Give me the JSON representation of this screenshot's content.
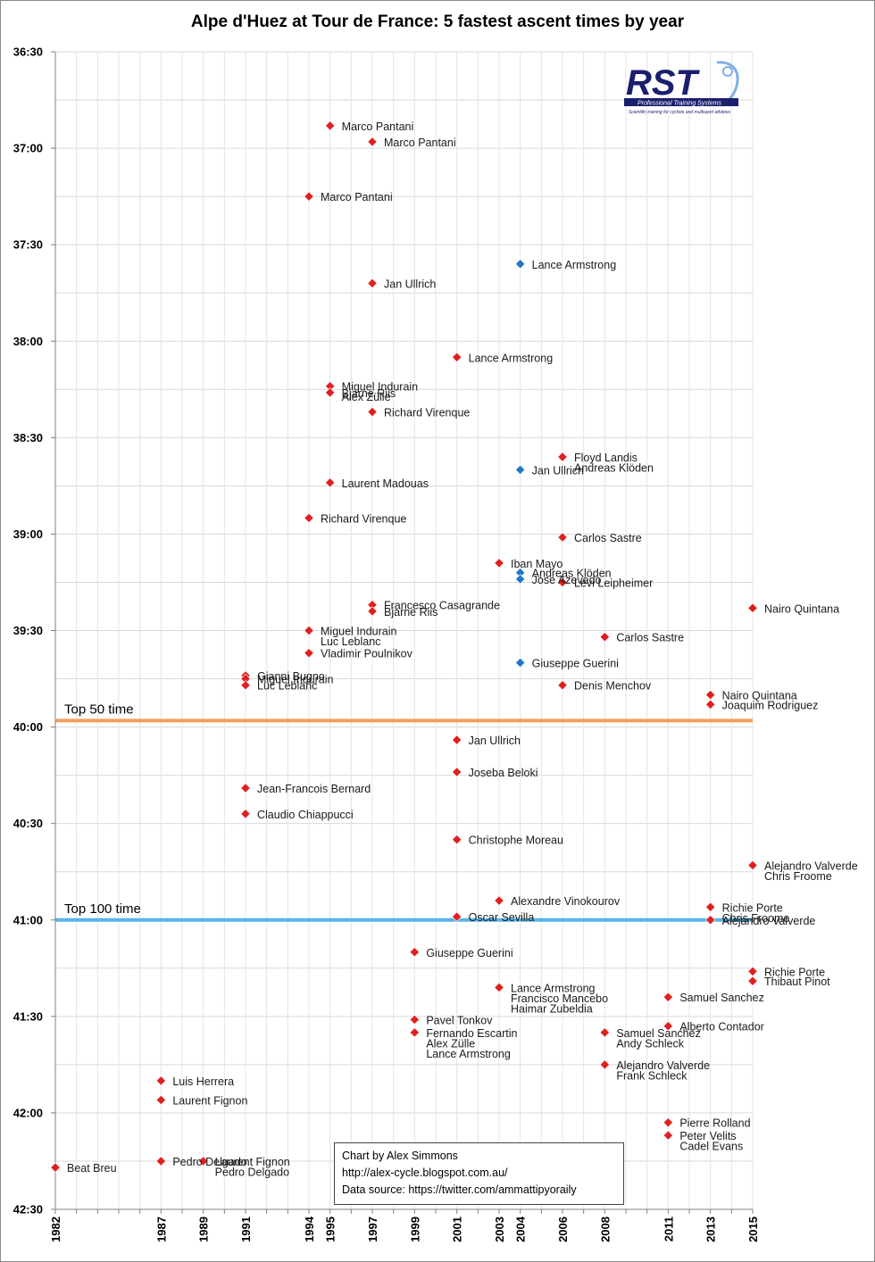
{
  "chart_data": {
    "type": "scatter",
    "title": "Alpe d'Huez at Tour de France: 5 fastest ascent times by year",
    "xlabel": "",
    "ylabel": "",
    "y_axis_inverted": true,
    "ylim_seconds": [
      2190,
      2550
    ],
    "y_ticks": [
      "36:30",
      "37:00",
      "37:30",
      "38:00",
      "38:30",
      "39:00",
      "39:30",
      "40:00",
      "40:30",
      "41:00",
      "41:30",
      "42:00",
      "42:30"
    ],
    "x_ticks": [
      "1982",
      "1987",
      "1989",
      "1991",
      "1994",
      "1995",
      "1997",
      "1999",
      "2001",
      "2003",
      "2004",
      "2006",
      "2008",
      "2011",
      "2013",
      "2015"
    ],
    "xlim": [
      1982,
      2015
    ],
    "series": [
      {
        "name": "Standard",
        "color": "#e02020"
      },
      {
        "name": "Highlighted",
        "color": "#1e78c8"
      }
    ],
    "reference_lines": [
      {
        "label": "Top 50 time",
        "value": "39:58",
        "color": "#f0a060"
      },
      {
        "label": "Top 100 time",
        "value": "41:00",
        "color": "#5ab4e6"
      }
    ],
    "points": [
      {
        "x": 1995,
        "y": "36:53",
        "series": 0,
        "labels": [
          "Marco Pantani"
        ]
      },
      {
        "x": 1997,
        "y": "36:58",
        "series": 0,
        "labels": [
          "Marco Pantani"
        ]
      },
      {
        "x": 1994,
        "y": "37:15",
        "series": 0,
        "labels": [
          "Marco Pantani"
        ]
      },
      {
        "x": 2004,
        "y": "37:36",
        "series": 1,
        "labels": [
          "Lance Armstrong"
        ]
      },
      {
        "x": 1997,
        "y": "37:42",
        "series": 0,
        "labels": [
          "Jan Ullrich"
        ]
      },
      {
        "x": 2001,
        "y": "38:05",
        "series": 0,
        "labels": [
          "Lance Armstrong"
        ]
      },
      {
        "x": 1995,
        "y": "38:14",
        "series": 0,
        "labels": [
          "Miguel Indurain",
          "Alex Zülle"
        ]
      },
      {
        "x": 1995,
        "y": "38:16",
        "series": 0,
        "labels": [
          "Bjarne Riis"
        ]
      },
      {
        "x": 1997,
        "y": "38:22",
        "series": 0,
        "labels": [
          "Richard Virenque"
        ]
      },
      {
        "x": 2006,
        "y": "38:36",
        "series": 0,
        "labels": [
          "Floyd Landis",
          "Andreas Klöden"
        ]
      },
      {
        "x": 2004,
        "y": "38:40",
        "series": 1,
        "labels": [
          "Jan Ullrich"
        ]
      },
      {
        "x": 1995,
        "y": "38:44",
        "series": 0,
        "labels": [
          "Laurent Madouas"
        ]
      },
      {
        "x": 1994,
        "y": "38:55",
        "series": 0,
        "labels": [
          "Richard Virenque"
        ]
      },
      {
        "x": 2006,
        "y": "39:01",
        "series": 0,
        "labels": [
          "Carlos Sastre"
        ]
      },
      {
        "x": 2003,
        "y": "39:09",
        "series": 0,
        "labels": [
          "Iban Mayo"
        ]
      },
      {
        "x": 2004,
        "y": "39:12",
        "series": 1,
        "labels": [
          "Andreas Klöden"
        ]
      },
      {
        "x": 2004,
        "y": "39:14",
        "series": 1,
        "labels": [
          "Jose Azevedo"
        ]
      },
      {
        "x": 2006,
        "y": "39:15",
        "series": 0,
        "labels": [
          "Levi Leipheimer"
        ]
      },
      {
        "x": 2015,
        "y": "39:23",
        "series": 0,
        "labels": [
          "Nairo Quintana"
        ]
      },
      {
        "x": 1997,
        "y": "39:22",
        "series": 0,
        "labels": [
          "Francesco Casagrande"
        ]
      },
      {
        "x": 1997,
        "y": "39:24",
        "series": 0,
        "labels": [
          "Bjarne Riis"
        ]
      },
      {
        "x": 1994,
        "y": "39:30",
        "series": 0,
        "labels": [
          "Miguel Indurain",
          "Luc Leblanc"
        ]
      },
      {
        "x": 2008,
        "y": "39:32",
        "series": 0,
        "labels": [
          "Carlos Sastre"
        ]
      },
      {
        "x": 1994,
        "y": "39:37",
        "series": 0,
        "labels": [
          "Vladimir Poulnikov"
        ]
      },
      {
        "x": 2004,
        "y": "39:40",
        "series": 1,
        "labels": [
          "Giuseppe Guerini"
        ]
      },
      {
        "x": 1991,
        "y": "39:44",
        "series": 0,
        "labels": [
          "Gianni Bugno"
        ]
      },
      {
        "x": 1991,
        "y": "39:45",
        "series": 0,
        "labels": [
          "Miguel Indurain"
        ]
      },
      {
        "x": 1991,
        "y": "39:47",
        "series": 0,
        "labels": [
          "Luc Leblanc"
        ]
      },
      {
        "x": 2006,
        "y": "39:47",
        "series": 0,
        "labels": [
          "Denis Menchov"
        ]
      },
      {
        "x": 2013,
        "y": "39:50",
        "series": 0,
        "labels": [
          "Nairo Quintana"
        ]
      },
      {
        "x": 2013,
        "y": "39:53",
        "series": 0,
        "labels": [
          "Joaquim Rodriguez"
        ]
      },
      {
        "x": 2001,
        "y": "40:04",
        "series": 0,
        "labels": [
          "Jan Ullrich"
        ]
      },
      {
        "x": 2001,
        "y": "40:14",
        "series": 0,
        "labels": [
          "Joseba Beloki"
        ]
      },
      {
        "x": 1991,
        "y": "40:19",
        "series": 0,
        "labels": [
          "Jean-Francois Bernard"
        ]
      },
      {
        "x": 1991,
        "y": "40:27",
        "series": 0,
        "labels": [
          "Claudio Chiappucci"
        ]
      },
      {
        "x": 2001,
        "y": "40:35",
        "series": 0,
        "labels": [
          "Christophe Moreau"
        ]
      },
      {
        "x": 2015,
        "y": "40:43",
        "series": 0,
        "labels": [
          "Alejandro Valverde",
          "Chris Froome"
        ]
      },
      {
        "x": 2003,
        "y": "40:54",
        "series": 0,
        "labels": [
          "Alexandre Vinokourov"
        ]
      },
      {
        "x": 2013,
        "y": "40:56",
        "series": 0,
        "labels": [
          "Richie Porte",
          "Chris Froome"
        ]
      },
      {
        "x": 2001,
        "y": "40:59",
        "series": 0,
        "labels": [
          "Oscar Sevilla"
        ]
      },
      {
        "x": 2013,
        "y": "41:00",
        "series": 0,
        "labels": [
          "Alejandro Valverde"
        ]
      },
      {
        "x": 1999,
        "y": "41:10",
        "series": 0,
        "labels": [
          "Giuseppe Guerini"
        ]
      },
      {
        "x": 2015,
        "y": "41:16",
        "series": 0,
        "labels": [
          "Richie Porte"
        ]
      },
      {
        "x": 2015,
        "y": "41:19",
        "series": 0,
        "labels": [
          "Thibaut Pinot"
        ]
      },
      {
        "x": 2003,
        "y": "41:21",
        "series": 0,
        "labels": [
          "Lance Armstrong",
          "Francisco Mancebo",
          "Haimar Zubeldia"
        ]
      },
      {
        "x": 2011,
        "y": "41:24",
        "series": 0,
        "labels": [
          "Samuel Sanchez"
        ]
      },
      {
        "x": 1999,
        "y": "41:31",
        "series": 0,
        "labels": [
          "Pavel Tonkov"
        ]
      },
      {
        "x": 2011,
        "y": "41:33",
        "series": 0,
        "labels": [
          "Alberto Contador"
        ]
      },
      {
        "x": 1999,
        "y": "41:35",
        "series": 0,
        "labels": [
          "Fernando Escartin",
          "Alex Zülle",
          "Lance Armstrong"
        ]
      },
      {
        "x": 2008,
        "y": "41:35",
        "series": 0,
        "labels": [
          "Samuel Sanchez",
          "Andy Schleck"
        ]
      },
      {
        "x": 2008,
        "y": "41:45",
        "series": 0,
        "labels": [
          "Alejandro Valverde",
          "Frank Schleck"
        ]
      },
      {
        "x": 1987,
        "y": "41:50",
        "series": 0,
        "labels": [
          "Luis Herrera"
        ]
      },
      {
        "x": 1987,
        "y": "41:56",
        "series": 0,
        "labels": [
          "Laurent Fignon"
        ]
      },
      {
        "x": 2011,
        "y": "42:03",
        "series": 0,
        "labels": [
          "Pierre Rolland"
        ]
      },
      {
        "x": 2011,
        "y": "42:07",
        "series": 0,
        "labels": [
          "Peter Velits",
          "Cadel Evans"
        ]
      },
      {
        "x": 1987,
        "y": "42:15",
        "series": 0,
        "labels": [
          "Pedro Delgado"
        ]
      },
      {
        "x": 1989,
        "y": "42:15",
        "series": 0,
        "labels": [
          "Laurent Fignon",
          "Pedro Delgado"
        ]
      },
      {
        "x": 1982,
        "y": "42:17",
        "series": 0,
        "labels": [
          "Beat Breu"
        ]
      }
    ]
  },
  "credits": {
    "line1": "Chart by Alex Simmons",
    "line2": "http://alex-cycle.blogspot.com.au/",
    "line3": "Data source: https://twitter.com/ammattipyoraily"
  },
  "logo": {
    "text": "RST",
    "banner": "Professional Training Systems",
    "tagline": "Scientific training for cyclists and multisport athletes"
  }
}
